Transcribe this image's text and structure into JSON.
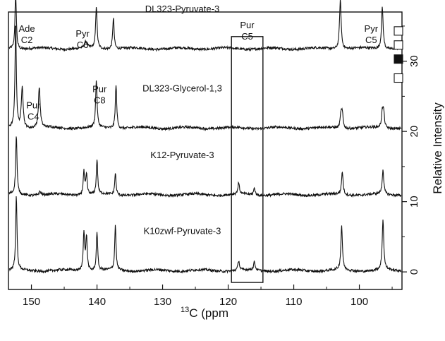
{
  "chart_data": {
    "type": "line",
    "title": "",
    "xlabel": "C (ppm",
    "xlabel_superscript": "13",
    "ylabel": "Relative Intensity",
    "x_axis_reversed": true,
    "xlim": [
      153.5,
      93.5
    ],
    "ylim": [
      -2.5,
      37
    ],
    "x_ticks": [
      150,
      140,
      130,
      120,
      110,
      100
    ],
    "y_ticks": [
      0,
      10,
      20,
      30
    ],
    "grid": false,
    "series": [
      {
        "name": "DL323-Pyruvate-3",
        "baseline": 31.8,
        "offset_x": 127,
        "peaks": [
          {
            "x": 152.4,
            "h": 8.5,
            "w": 0.12
          },
          {
            "x": 141.7,
            "h": 0.9,
            "w": 0.22
          },
          {
            "x": 140.1,
            "h": 6.0,
            "w": 0.13
          },
          {
            "x": 137.5,
            "h": 4.5,
            "w": 0.13
          },
          {
            "x": 102.9,
            "h": 7.0,
            "w": 0.15
          },
          {
            "x": 96.5,
            "h": 6.0,
            "w": 0.15
          }
        ]
      },
      {
        "name": "DL323-Glycerol-1,3",
        "baseline": 20.5,
        "offset_x": 127,
        "peaks": [
          {
            "x": 152.4,
            "h": 15.0,
            "w": 0.12
          },
          {
            "x": 151.4,
            "h": 6.0,
            "w": 0.16
          },
          {
            "x": 148.8,
            "h": 5.8,
            "w": 0.16
          },
          {
            "x": 140.1,
            "h": 6.7,
            "w": 0.13
          },
          {
            "x": 137.1,
            "h": 6.2,
            "w": 0.13
          },
          {
            "x": 102.8,
            "h": 2.0,
            "w": 0.14
          },
          {
            "x": 102.6,
            "h": 2.0,
            "w": 0.14
          },
          {
            "x": 96.5,
            "h": 2.2,
            "w": 0.14
          },
          {
            "x": 96.3,
            "h": 2.2,
            "w": 0.14
          }
        ]
      },
      {
        "name": "K12-Pyruvate-3",
        "baseline": 11.0,
        "offset_x": 127,
        "peaks": [
          {
            "x": 152.3,
            "h": 8.5,
            "w": 0.12
          },
          {
            "x": 148.7,
            "h": 0.5,
            "w": 0.2
          },
          {
            "x": 142.0,
            "h": 3.3,
            "w": 0.13
          },
          {
            "x": 141.6,
            "h": 2.8,
            "w": 0.13
          },
          {
            "x": 140.0,
            "h": 5.0,
            "w": 0.12
          },
          {
            "x": 137.2,
            "h": 3.1,
            "w": 0.12
          },
          {
            "x": 118.4,
            "h": 1.6,
            "w": 0.14
          },
          {
            "x": 116.0,
            "h": 1.0,
            "w": 0.14
          },
          {
            "x": 102.6,
            "h": 3.3,
            "w": 0.14
          },
          {
            "x": 96.4,
            "h": 3.5,
            "w": 0.14
          }
        ]
      },
      {
        "name": "K10zwf-Pyruvate-3",
        "baseline": 0.2,
        "offset_x": 127,
        "peaks": [
          {
            "x": 152.3,
            "h": 10.5,
            "w": 0.12
          },
          {
            "x": 142.0,
            "h": 5.4,
            "w": 0.13
          },
          {
            "x": 141.6,
            "h": 4.8,
            "w": 0.13
          },
          {
            "x": 140.0,
            "h": 5.6,
            "w": 0.12
          },
          {
            "x": 137.2,
            "h": 6.4,
            "w": 0.12
          },
          {
            "x": 118.4,
            "h": 1.4,
            "w": 0.14
          },
          {
            "x": 116.0,
            "h": 1.2,
            "w": 0.14
          },
          {
            "x": 102.7,
            "h": 6.3,
            "w": 0.14
          },
          {
            "x": 96.4,
            "h": 7.2,
            "w": 0.14
          }
        ]
      }
    ],
    "peak_annotations": [
      {
        "lines": [
          "Ade",
          "C2"
        ],
        "x": 150.7,
        "y": 34.2
      },
      {
        "lines": [
          "Pyr",
          "C6"
        ],
        "x": 142.2,
        "y": 33.5
      },
      {
        "lines": [
          "Pur",
          "C8"
        ],
        "x": 139.6,
        "y": 25.6
      },
      {
        "lines": [
          "Pur",
          "C4"
        ],
        "x": 149.7,
        "y": 23.3
      },
      {
        "lines": [
          "Pur",
          "C5"
        ],
        "x": 117.1,
        "y": 34.7
      },
      {
        "lines": [
          "Pyr",
          "C5"
        ],
        "x": 98.2,
        "y": 34.2
      }
    ],
    "highlight_box": {
      "x_from": 119.5,
      "x_to": 114.7,
      "y_from": -1.5,
      "y_to": 33.5
    },
    "right_markers": [
      {
        "y": 34.3,
        "filled": false
      },
      {
        "y": 32.3,
        "filled": false
      },
      {
        "y": 30.3,
        "filled": true
      },
      {
        "y": 27.6,
        "filled": false
      }
    ]
  }
}
